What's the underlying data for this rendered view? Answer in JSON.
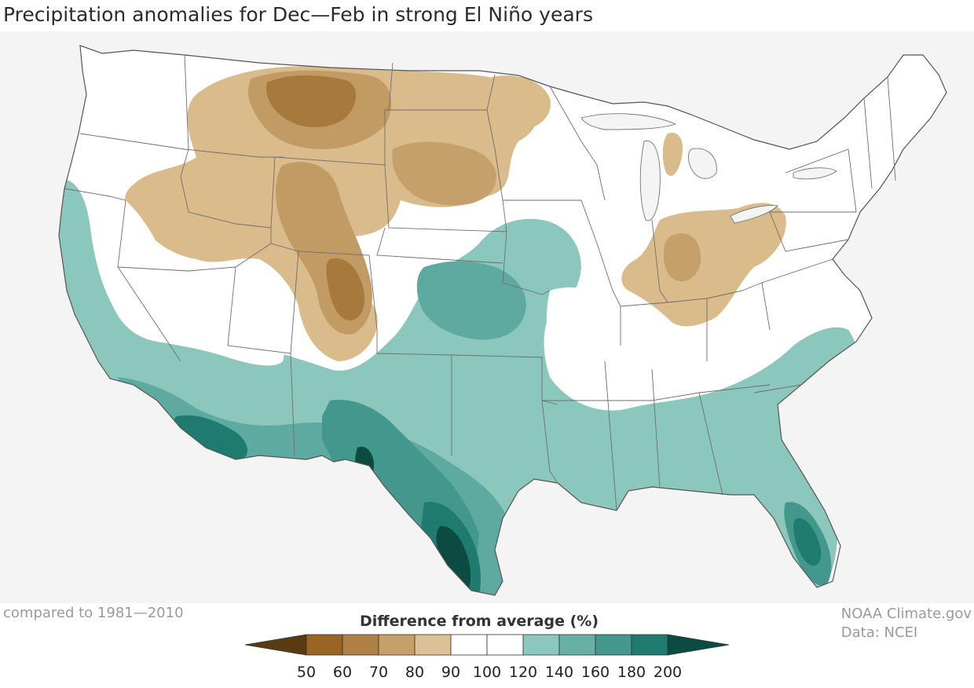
{
  "title": "Precipitation anomalies for Dec—Feb in strong El Niño years",
  "baseline_note": "compared to 1981—2010",
  "credits": {
    "source": "NOAA Climate.gov",
    "data": "Data: NCEI"
  },
  "legend": {
    "title": "Difference from average (%)",
    "ticks": [
      "50",
      "60",
      "70",
      "80",
      "90",
      "100",
      "120",
      "140",
      "160",
      "180",
      "200"
    ],
    "colors": {
      "below_50": "#5a3a12",
      "b50_60": "#9a6424",
      "b60_70": "#b07f45",
      "b70_80": "#c6a06a",
      "b80_90": "#dcc196",
      "b90_100": "#ffffff",
      "b100_120": "#ffffff",
      "b120_140": "#8cc7bd",
      "b140_160": "#68afa6",
      "b160_180": "#43978d",
      "b180_200": "#1f7b70",
      "above_200": "#0b4b42"
    }
  },
  "map": {
    "region": "contiguous United States",
    "colors": {
      "land": "#ffffff",
      "background": "#f4f4f4",
      "border": "#777777",
      "dry_light": "#d9bb8c",
      "dry_mid": "#c29a63",
      "dry_dark": "#a8793d",
      "wet_light": "#8cc7bd",
      "wet_mid": "#5ea9a0",
      "wet_dark": "#2f8a7f",
      "wet_deep": "#0b4b42"
    }
  }
}
